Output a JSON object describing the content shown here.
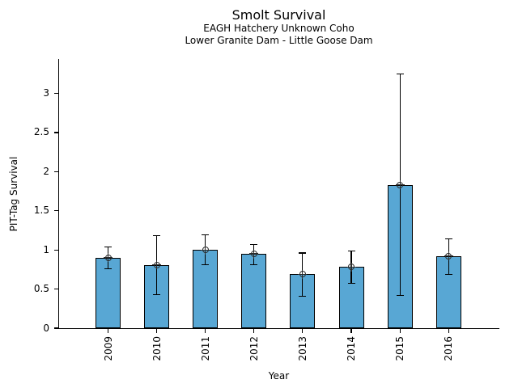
{
  "chart_data": {
    "type": "bar",
    "title": "Smolt Survival",
    "subtitle": [
      "EAGH Hatchery Unknown Coho",
      "Lower Granite Dam - Little Goose Dam"
    ],
    "categories": [
      "2009",
      "2010",
      "2011",
      "2012",
      "2013",
      "2014",
      "2015",
      "2016"
    ],
    "series": [
      {
        "name": "PIT-Tag Survival",
        "values": [
          0.9,
          0.81,
          1.0,
          0.95,
          0.69,
          0.78,
          1.83,
          0.92
        ],
        "error_low": [
          0.76,
          0.43,
          0.81,
          0.81,
          0.41,
          0.57,
          0.42,
          0.69
        ],
        "error_high": [
          1.04,
          1.18,
          1.19,
          1.07,
          0.96,
          0.99,
          3.25,
          1.14
        ]
      }
    ],
    "xlabel": "Year",
    "ylabel": "PIT-Tag Survival",
    "ylim": [
      0,
      3.44
    ],
    "yticks": [
      0,
      0.5,
      1,
      1.5,
      2,
      2.5,
      3
    ],
    "ytick_labels": [
      "0",
      "0.5",
      "1",
      "1.5",
      "2",
      "2.5",
      "3"
    ],
    "grid": false,
    "legend": "none",
    "bar_color": "#58A7D4",
    "bar_edge_color": "#000000",
    "error_color": "#000000",
    "marker": "circle-plus",
    "marker_color": "#2b2b2b"
  }
}
